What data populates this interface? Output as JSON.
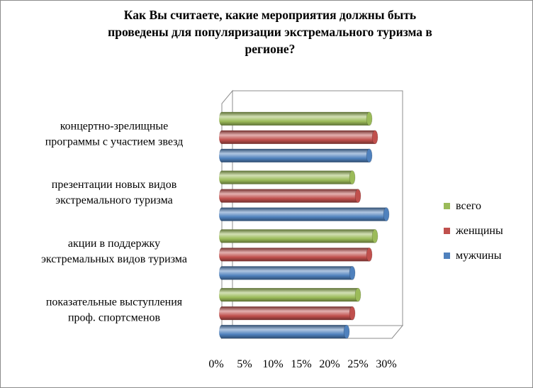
{
  "chart_data": {
    "type": "bar",
    "orientation": "horizontal",
    "title": "Как Вы считаете, какие мероприятия должны быть проведены для популяризации экстремального туризма в регионе?",
    "title_lines": [
      "Как Вы считаете, какие мероприятия  должны быть",
      "проведены для популяризации экстремального туризма  в",
      "регионе?"
    ],
    "categories": [
      {
        "lines": [
          "показательные выступления",
          "проф. спортсменов"
        ]
      },
      {
        "lines": [
          "акции в поддержку",
          "экстремальных  видов туризма"
        ]
      },
      {
        "lines": [
          "презентации  новых видов",
          "экстремального туризма"
        ]
      },
      {
        "lines": [
          "концертно-зрелищные",
          "программы с участием  звезд"
        ]
      }
    ],
    "series": [
      {
        "name": "мужчины",
        "color": "#4f81bd",
        "values": [
          22,
          23,
          29,
          26
        ]
      },
      {
        "name": "женщины",
        "color": "#c0504d",
        "values": [
          23,
          26,
          24,
          27
        ]
      },
      {
        "name": "всего",
        "color": "#9bbb59",
        "values": [
          24,
          27,
          23,
          26
        ]
      }
    ],
    "legend_order": [
      "всего",
      "женщины",
      "мужчины"
    ],
    "xlim": [
      0,
      30
    ],
    "x_ticks": [
      "0%",
      "5%",
      "10%",
      "15%",
      "20%",
      "25%",
      "30%"
    ],
    "legend_position": "right",
    "style": "3d-cylinder",
    "grid": false
  }
}
